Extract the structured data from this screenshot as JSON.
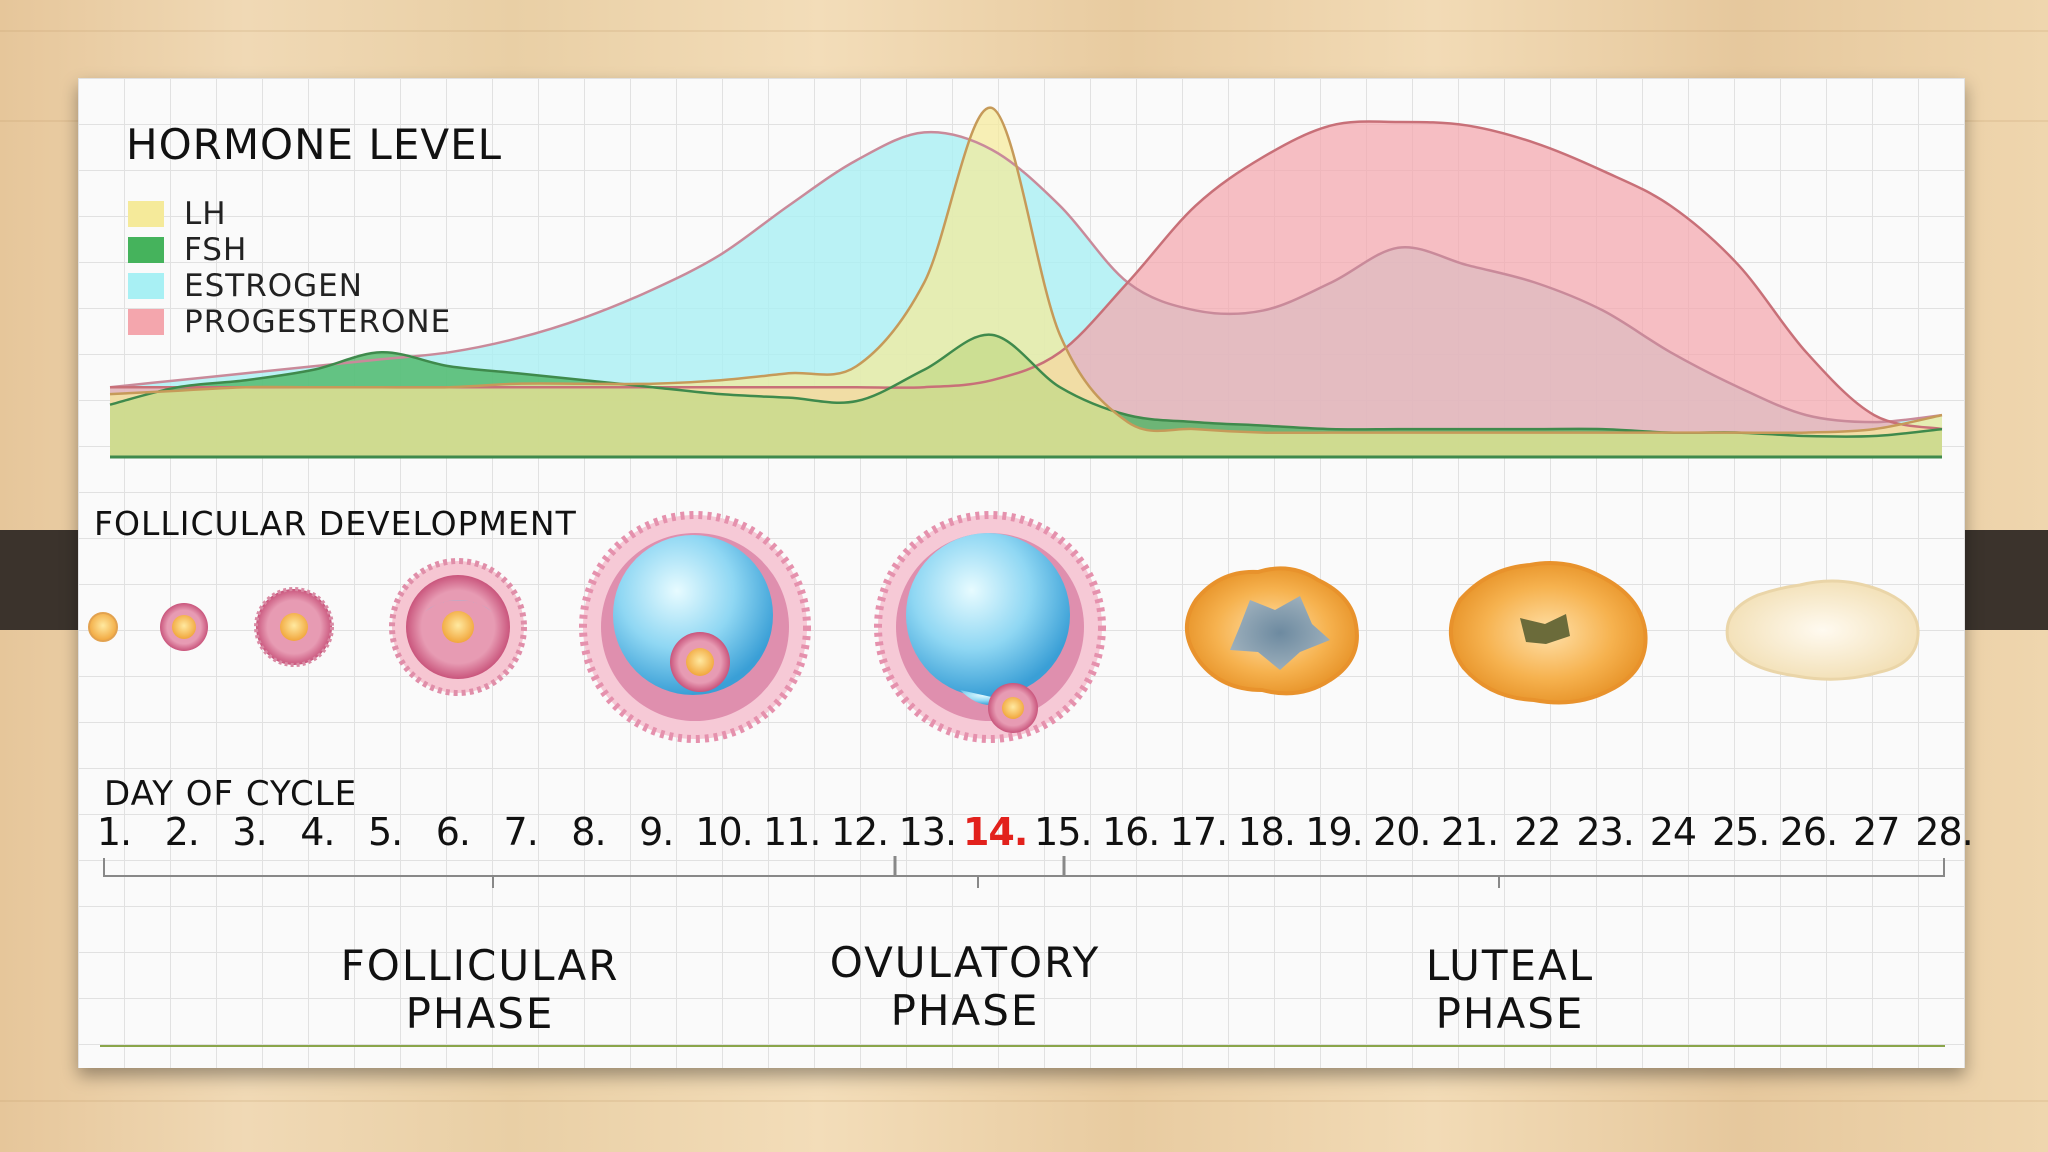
{
  "hormone_chart": {
    "title": "HORMONE LEVEL",
    "legend": [
      {
        "label": "LH",
        "color": "#f5ea9a"
      },
      {
        "label": "FSH",
        "color": "#45b35c"
      },
      {
        "label": "ESTROGEN",
        "color": "#a8f0f4"
      },
      {
        "label": "PROGESTERONE",
        "color": "#f4a6ad"
      }
    ]
  },
  "chart_data": {
    "type": "area",
    "title": "HORMONE LEVEL",
    "xlabel": "DAY OF CYCLE",
    "ylabel": "",
    "x": [
      1,
      2,
      3,
      4,
      5,
      6,
      7,
      8,
      9,
      10,
      11,
      12,
      13,
      14,
      15,
      16,
      17,
      18,
      19,
      20,
      21,
      22,
      23,
      24,
      25,
      26,
      27,
      28
    ],
    "series": [
      {
        "name": "LH",
        "color": "#f5ea9a",
        "values": [
          0.18,
          0.19,
          0.2,
          0.2,
          0.2,
          0.2,
          0.21,
          0.21,
          0.21,
          0.22,
          0.24,
          0.26,
          0.5,
          1.0,
          0.35,
          0.1,
          0.08,
          0.07,
          0.07,
          0.07,
          0.07,
          0.07,
          0.07,
          0.07,
          0.07,
          0.07,
          0.08,
          0.12
        ]
      },
      {
        "name": "FSH",
        "color": "#45b35c",
        "values": [
          0.15,
          0.2,
          0.22,
          0.25,
          0.3,
          0.26,
          0.24,
          0.22,
          0.2,
          0.18,
          0.17,
          0.16,
          0.25,
          0.35,
          0.2,
          0.12,
          0.1,
          0.09,
          0.08,
          0.08,
          0.08,
          0.08,
          0.08,
          0.07,
          0.07,
          0.06,
          0.06,
          0.08
        ]
      },
      {
        "name": "ESTROGEN",
        "color": "#a8f0f4",
        "values": [
          0.2,
          0.22,
          0.24,
          0.26,
          0.28,
          0.3,
          0.34,
          0.4,
          0.48,
          0.58,
          0.72,
          0.85,
          0.93,
          0.88,
          0.72,
          0.5,
          0.42,
          0.42,
          0.5,
          0.6,
          0.55,
          0.5,
          0.42,
          0.3,
          0.2,
          0.12,
          0.1,
          0.12
        ]
      },
      {
        "name": "PROGESTERONE",
        "color": "#f4a6ad",
        "values": [
          0.2,
          0.2,
          0.2,
          0.2,
          0.2,
          0.2,
          0.2,
          0.2,
          0.2,
          0.2,
          0.2,
          0.2,
          0.2,
          0.22,
          0.3,
          0.5,
          0.72,
          0.86,
          0.95,
          0.96,
          0.95,
          0.9,
          0.82,
          0.72,
          0.55,
          0.3,
          0.12,
          0.08
        ]
      }
    ]
  },
  "follicular": {
    "title": "FOLLICULAR DEVELOPMENT"
  },
  "cycle": {
    "title": "DAY OF CYCLE",
    "days": [
      "1.",
      "2.",
      "3.",
      "4.",
      "5.",
      "6.",
      "7.",
      "8.",
      "9.",
      "10.",
      "11.",
      "12.",
      "13.",
      "14.",
      "15.",
      "16.",
      "17.",
      "18.",
      "19.",
      "20.",
      "21.",
      "22",
      "23.",
      "24",
      "25.",
      "26.",
      "27",
      "28."
    ],
    "highlight_day": "14.",
    "highlight_color": "#e2211c"
  },
  "phases": [
    {
      "line1": "FOLLICULAR",
      "line2": "PHASE"
    },
    {
      "line1": "OVULATORY",
      "line2": "PHASE"
    },
    {
      "line1": "LUTEAL",
      "line2": "PHASE"
    }
  ]
}
